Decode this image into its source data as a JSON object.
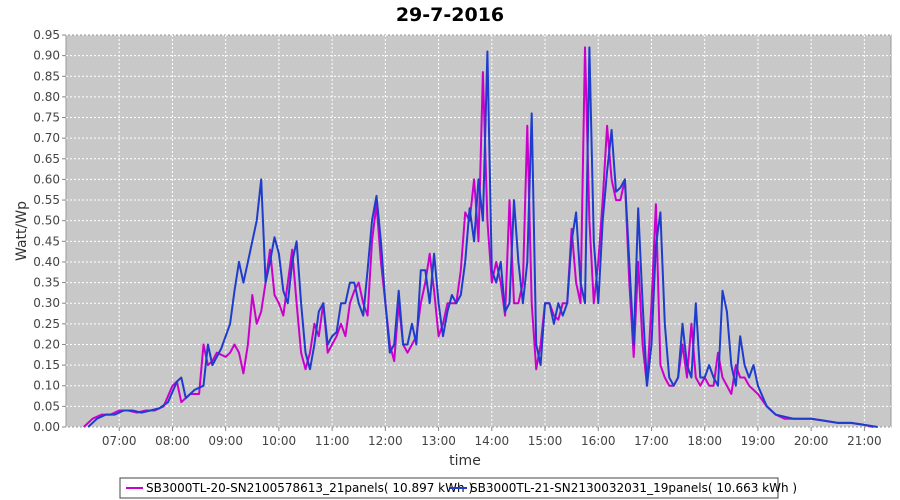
{
  "chart_data": {
    "type": "line",
    "title": "29-7-2016",
    "xlabel": "time",
    "ylabel": "Watt/Wp",
    "xlim": [
      "06:00",
      "21:30"
    ],
    "ylim": [
      0,
      0.95
    ],
    "x_ticks": [
      "07:00",
      "08:00",
      "09:00",
      "10:00",
      "11:00",
      "12:00",
      "13:00",
      "14:00",
      "15:00",
      "16:00",
      "17:00",
      "18:00",
      "19:00",
      "20:00",
      "21:00"
    ],
    "y_ticks": [
      "0.00",
      "0.05",
      "0.10",
      "0.15",
      "0.20",
      "0.25",
      "0.30",
      "0.35",
      "0.40",
      "0.45",
      "0.50",
      "0.55",
      "0.60",
      "0.65",
      "0.70",
      "0.75",
      "0.80",
      "0.85",
      "0.90",
      "0.95"
    ],
    "grid": true,
    "legend_position": "bottom",
    "series": [
      {
        "name": "SB3000TL-20-SN2100578613_21panels( 10.897 kWh )",
        "color": "#cc00cc",
        "points": [
          [
            "06:20",
            0.0
          ],
          [
            "06:30",
            0.02
          ],
          [
            "06:40",
            0.03
          ],
          [
            "06:50",
            0.03
          ],
          [
            "07:00",
            0.04
          ],
          [
            "07:10",
            0.04
          ],
          [
            "07:20",
            0.035
          ],
          [
            "07:30",
            0.04
          ],
          [
            "07:40",
            0.04
          ],
          [
            "07:50",
            0.05
          ],
          [
            "08:00",
            0.1
          ],
          [
            "08:05",
            0.11
          ],
          [
            "08:10",
            0.06
          ],
          [
            "08:20",
            0.08
          ],
          [
            "08:30",
            0.08
          ],
          [
            "08:35",
            0.2
          ],
          [
            "08:40",
            0.15
          ],
          [
            "08:45",
            0.16
          ],
          [
            "08:50",
            0.18
          ],
          [
            "09:00",
            0.17
          ],
          [
            "09:05",
            0.18
          ],
          [
            "09:10",
            0.2
          ],
          [
            "09:15",
            0.18
          ],
          [
            "09:20",
            0.13
          ],
          [
            "09:25",
            0.2
          ],
          [
            "09:30",
            0.32
          ],
          [
            "09:35",
            0.25
          ],
          [
            "09:40",
            0.28
          ],
          [
            "09:45",
            0.35
          ],
          [
            "09:50",
            0.43
          ],
          [
            "09:55",
            0.32
          ],
          [
            "10:00",
            0.3
          ],
          [
            "10:05",
            0.27
          ],
          [
            "10:10",
            0.35
          ],
          [
            "10:15",
            0.43
          ],
          [
            "10:20",
            0.3
          ],
          [
            "10:25",
            0.18
          ],
          [
            "10:30",
            0.14
          ],
          [
            "10:35",
            0.18
          ],
          [
            "10:40",
            0.25
          ],
          [
            "10:45",
            0.22
          ],
          [
            "10:50",
            0.3
          ],
          [
            "10:55",
            0.18
          ],
          [
            "11:00",
            0.2
          ],
          [
            "11:05",
            0.22
          ],
          [
            "11:10",
            0.25
          ],
          [
            "11:15",
            0.22
          ],
          [
            "11:20",
            0.3
          ],
          [
            "11:25",
            0.33
          ],
          [
            "11:30",
            0.35
          ],
          [
            "11:35",
            0.3
          ],
          [
            "11:40",
            0.27
          ],
          [
            "11:45",
            0.45
          ],
          [
            "11:50",
            0.54
          ],
          [
            "11:55",
            0.4
          ],
          [
            "12:00",
            0.3
          ],
          [
            "12:05",
            0.2
          ],
          [
            "12:10",
            0.16
          ],
          [
            "12:15",
            0.3
          ],
          [
            "12:20",
            0.2
          ],
          [
            "12:25",
            0.18
          ],
          [
            "12:30",
            0.2
          ],
          [
            "12:35",
            0.22
          ],
          [
            "12:40",
            0.3
          ],
          [
            "12:45",
            0.35
          ],
          [
            "12:50",
            0.42
          ],
          [
            "12:55",
            0.33
          ],
          [
            "13:00",
            0.22
          ],
          [
            "13:05",
            0.25
          ],
          [
            "13:10",
            0.3
          ],
          [
            "13:15",
            0.3
          ],
          [
            "13:20",
            0.3
          ],
          [
            "13:25",
            0.38
          ],
          [
            "13:30",
            0.52
          ],
          [
            "13:35",
            0.5
          ],
          [
            "13:40",
            0.6
          ],
          [
            "13:45",
            0.45
          ],
          [
            "13:50",
            0.86
          ],
          [
            "13:55",
            0.5
          ],
          [
            "14:00",
            0.35
          ],
          [
            "14:05",
            0.4
          ],
          [
            "14:10",
            0.35
          ],
          [
            "14:15",
            0.27
          ],
          [
            "14:20",
            0.55
          ],
          [
            "14:25",
            0.3
          ],
          [
            "14:30",
            0.3
          ],
          [
            "14:35",
            0.35
          ],
          [
            "14:40",
            0.73
          ],
          [
            "14:45",
            0.3
          ],
          [
            "14:50",
            0.14
          ],
          [
            "14:55",
            0.2
          ],
          [
            "15:00",
            0.3
          ],
          [
            "15:05",
            0.3
          ],
          [
            "15:10",
            0.27
          ],
          [
            "15:15",
            0.26
          ],
          [
            "15:20",
            0.3
          ],
          [
            "15:25",
            0.3
          ],
          [
            "15:30",
            0.48
          ],
          [
            "15:35",
            0.35
          ],
          [
            "15:40",
            0.3
          ],
          [
            "15:45",
            0.92
          ],
          [
            "15:50",
            0.5
          ],
          [
            "15:55",
            0.3
          ],
          [
            "16:00",
            0.4
          ],
          [
            "16:05",
            0.55
          ],
          [
            "16:10",
            0.73
          ],
          [
            "16:15",
            0.6
          ],
          [
            "16:20",
            0.55
          ],
          [
            "16:25",
            0.55
          ],
          [
            "16:30",
            0.6
          ],
          [
            "16:35",
            0.35
          ],
          [
            "16:40",
            0.17
          ],
          [
            "16:45",
            0.4
          ],
          [
            "16:50",
            0.2
          ],
          [
            "16:55",
            0.1
          ],
          [
            "17:00",
            0.3
          ],
          [
            "17:05",
            0.54
          ],
          [
            "17:10",
            0.15
          ],
          [
            "17:15",
            0.12
          ],
          [
            "17:20",
            0.1
          ],
          [
            "17:25",
            0.1
          ],
          [
            "17:30",
            0.12
          ],
          [
            "17:35",
            0.2
          ],
          [
            "17:40",
            0.12
          ],
          [
            "17:45",
            0.25
          ],
          [
            "17:50",
            0.12
          ],
          [
            "17:55",
            0.1
          ],
          [
            "18:00",
            0.12
          ],
          [
            "18:05",
            0.1
          ],
          [
            "18:10",
            0.1
          ],
          [
            "18:15",
            0.18
          ],
          [
            "18:20",
            0.12
          ],
          [
            "18:25",
            0.1
          ],
          [
            "18:30",
            0.08
          ],
          [
            "18:35",
            0.15
          ],
          [
            "18:40",
            0.12
          ],
          [
            "18:45",
            0.12
          ],
          [
            "18:50",
            0.1
          ],
          [
            "19:00",
            0.08
          ],
          [
            "19:10",
            0.05
          ],
          [
            "19:20",
            0.03
          ],
          [
            "19:30",
            0.02
          ],
          [
            "19:40",
            0.02
          ],
          [
            "19:50",
            0.02
          ],
          [
            "20:00",
            0.02
          ],
          [
            "20:15",
            0.015
          ],
          [
            "20:30",
            0.01
          ],
          [
            "20:45",
            0.01
          ],
          [
            "21:00",
            0.005
          ],
          [
            "21:10",
            0.0
          ]
        ]
      },
      {
        "name": "SB3000TL-21-SN2130032031_19panels( 10.663 kWh )",
        "color": "#1f3dcc",
        "points": [
          [
            "06:25",
            0.0
          ],
          [
            "06:35",
            0.02
          ],
          [
            "06:45",
            0.03
          ],
          [
            "06:55",
            0.03
          ],
          [
            "07:05",
            0.04
          ],
          [
            "07:15",
            0.04
          ],
          [
            "07:25",
            0.035
          ],
          [
            "07:35",
            0.04
          ],
          [
            "07:45",
            0.045
          ],
          [
            "07:55",
            0.06
          ],
          [
            "08:05",
            0.11
          ],
          [
            "08:10",
            0.12
          ],
          [
            "08:15",
            0.07
          ],
          [
            "08:25",
            0.09
          ],
          [
            "08:35",
            0.1
          ],
          [
            "08:40",
            0.2
          ],
          [
            "08:45",
            0.15
          ],
          [
            "08:50",
            0.17
          ],
          [
            "08:55",
            0.19
          ],
          [
            "09:05",
            0.25
          ],
          [
            "09:10",
            0.33
          ],
          [
            "09:15",
            0.4
          ],
          [
            "09:20",
            0.35
          ],
          [
            "09:25",
            0.4
          ],
          [
            "09:30",
            0.45
          ],
          [
            "09:35",
            0.5
          ],
          [
            "09:40",
            0.6
          ],
          [
            "09:45",
            0.35
          ],
          [
            "09:50",
            0.4
          ],
          [
            "09:55",
            0.46
          ],
          [
            "10:00",
            0.42
          ],
          [
            "10:05",
            0.33
          ],
          [
            "10:10",
            0.3
          ],
          [
            "10:15",
            0.4
          ],
          [
            "10:20",
            0.45
          ],
          [
            "10:25",
            0.3
          ],
          [
            "10:30",
            0.18
          ],
          [
            "10:35",
            0.14
          ],
          [
            "10:40",
            0.2
          ],
          [
            "10:45",
            0.28
          ],
          [
            "10:50",
            0.3
          ],
          [
            "10:55",
            0.2
          ],
          [
            "11:00",
            0.22
          ],
          [
            "11:05",
            0.23
          ],
          [
            "11:10",
            0.3
          ],
          [
            "11:15",
            0.3
          ],
          [
            "11:20",
            0.35
          ],
          [
            "11:25",
            0.35
          ],
          [
            "11:30",
            0.3
          ],
          [
            "11:35",
            0.27
          ],
          [
            "11:40",
            0.38
          ],
          [
            "11:45",
            0.5
          ],
          [
            "11:50",
            0.56
          ],
          [
            "11:55",
            0.45
          ],
          [
            "12:00",
            0.3
          ],
          [
            "12:05",
            0.18
          ],
          [
            "12:10",
            0.2
          ],
          [
            "12:15",
            0.33
          ],
          [
            "12:20",
            0.2
          ],
          [
            "12:25",
            0.2
          ],
          [
            "12:30",
            0.25
          ],
          [
            "12:35",
            0.2
          ],
          [
            "12:40",
            0.38
          ],
          [
            "12:45",
            0.38
          ],
          [
            "12:50",
            0.3
          ],
          [
            "12:55",
            0.42
          ],
          [
            "13:00",
            0.3
          ],
          [
            "13:05",
            0.22
          ],
          [
            "13:10",
            0.28
          ],
          [
            "13:15",
            0.32
          ],
          [
            "13:20",
            0.3
          ],
          [
            "13:25",
            0.32
          ],
          [
            "13:30",
            0.4
          ],
          [
            "13:35",
            0.53
          ],
          [
            "13:40",
            0.45
          ],
          [
            "13:45",
            0.6
          ],
          [
            "13:50",
            0.5
          ],
          [
            "13:55",
            0.91
          ],
          [
            "14:00",
            0.38
          ],
          [
            "14:05",
            0.35
          ],
          [
            "14:10",
            0.4
          ],
          [
            "14:15",
            0.28
          ],
          [
            "14:20",
            0.3
          ],
          [
            "14:25",
            0.55
          ],
          [
            "14:30",
            0.4
          ],
          [
            "14:35",
            0.3
          ],
          [
            "14:40",
            0.4
          ],
          [
            "14:45",
            0.76
          ],
          [
            "14:50",
            0.2
          ],
          [
            "14:55",
            0.15
          ],
          [
            "15:00",
            0.3
          ],
          [
            "15:05",
            0.3
          ],
          [
            "15:10",
            0.25
          ],
          [
            "15:15",
            0.3
          ],
          [
            "15:20",
            0.27
          ],
          [
            "15:25",
            0.3
          ],
          [
            "15:30",
            0.45
          ],
          [
            "15:35",
            0.52
          ],
          [
            "15:40",
            0.35
          ],
          [
            "15:45",
            0.3
          ],
          [
            "15:50",
            0.92
          ],
          [
            "15:55",
            0.45
          ],
          [
            "16:00",
            0.3
          ],
          [
            "16:05",
            0.5
          ],
          [
            "16:10",
            0.62
          ],
          [
            "16:15",
            0.72
          ],
          [
            "16:20",
            0.57
          ],
          [
            "16:25",
            0.58
          ],
          [
            "16:30",
            0.6
          ],
          [
            "16:35",
            0.4
          ],
          [
            "16:40",
            0.2
          ],
          [
            "16:45",
            0.53
          ],
          [
            "16:50",
            0.3
          ],
          [
            "16:55",
            0.1
          ],
          [
            "17:00",
            0.2
          ],
          [
            "17:05",
            0.44
          ],
          [
            "17:10",
            0.52
          ],
          [
            "17:15",
            0.25
          ],
          [
            "17:20",
            0.12
          ],
          [
            "17:25",
            0.1
          ],
          [
            "17:30",
            0.12
          ],
          [
            "17:35",
            0.25
          ],
          [
            "17:40",
            0.15
          ],
          [
            "17:45",
            0.12
          ],
          [
            "17:50",
            0.3
          ],
          [
            "17:55",
            0.12
          ],
          [
            "18:00",
            0.12
          ],
          [
            "18:05",
            0.15
          ],
          [
            "18:10",
            0.12
          ],
          [
            "18:15",
            0.1
          ],
          [
            "18:20",
            0.33
          ],
          [
            "18:25",
            0.28
          ],
          [
            "18:30",
            0.15
          ],
          [
            "18:35",
            0.1
          ],
          [
            "18:40",
            0.22
          ],
          [
            "18:45",
            0.15
          ],
          [
            "18:50",
            0.12
          ],
          [
            "18:55",
            0.15
          ],
          [
            "19:00",
            0.1
          ],
          [
            "19:10",
            0.05
          ],
          [
            "19:20",
            0.03
          ],
          [
            "19:30",
            0.025
          ],
          [
            "19:40",
            0.02
          ],
          [
            "19:50",
            0.02
          ],
          [
            "20:00",
            0.02
          ],
          [
            "20:15",
            0.015
          ],
          [
            "20:30",
            0.01
          ],
          [
            "20:45",
            0.01
          ],
          [
            "21:00",
            0.005
          ],
          [
            "21:15",
            0.0
          ]
        ]
      }
    ]
  }
}
